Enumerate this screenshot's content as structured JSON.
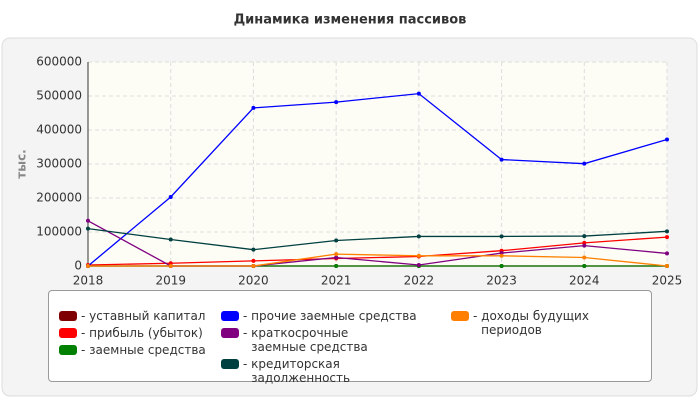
{
  "chart_data": {
    "type": "line",
    "title": "Динамика изменения пассивов",
    "y_label": "тыс.",
    "x": [
      2018,
      2019,
      2020,
      2021,
      2022,
      2023,
      2024,
      2025
    ],
    "xlim": [
      2018,
      2025
    ],
    "xticks": [
      2018,
      2019,
      2020,
      2021,
      2022,
      2023,
      2024,
      2025
    ],
    "ylim": [
      0,
      600000
    ],
    "yticks": [
      0,
      100000,
      200000,
      300000,
      400000,
      500000,
      600000
    ],
    "grid": true,
    "legend": "bottom",
    "series": [
      {
        "name": "уставный капитал",
        "color": "#7f0000",
        "values": [
          0,
          0,
          0,
          0,
          0,
          0,
          0,
          0
        ]
      },
      {
        "name": "прибыль (убыток)",
        "color": "#ff0000",
        "values": [
          3000,
          8000,
          15000,
          22000,
          28000,
          45000,
          68000,
          85000
        ]
      },
      {
        "name": "заемные средства",
        "color": "#008000",
        "values": [
          0,
          0,
          0,
          0,
          0,
          0,
          0,
          0
        ]
      },
      {
        "name": "прочие заемные средства",
        "color": "#0000ff",
        "values": [
          0,
          203000,
          465000,
          482000,
          507000,
          313000,
          301000,
          372000
        ]
      },
      {
        "name": "краткосрочные заемные средства",
        "color": "#800080",
        "values": [
          133000,
          0,
          0,
          25000,
          3000,
          38000,
          60000,
          37000
        ]
      },
      {
        "name": "кредиторская задолженность",
        "color": "#004040",
        "values": [
          110000,
          78000,
          48000,
          75000,
          87000,
          87000,
          88000,
          102000
        ]
      },
      {
        "name": "доходы будущих периодов",
        "color": "#ff8000",
        "values": [
          0,
          0,
          0,
          35000,
          30000,
          30000,
          25000,
          0
        ]
      }
    ]
  }
}
